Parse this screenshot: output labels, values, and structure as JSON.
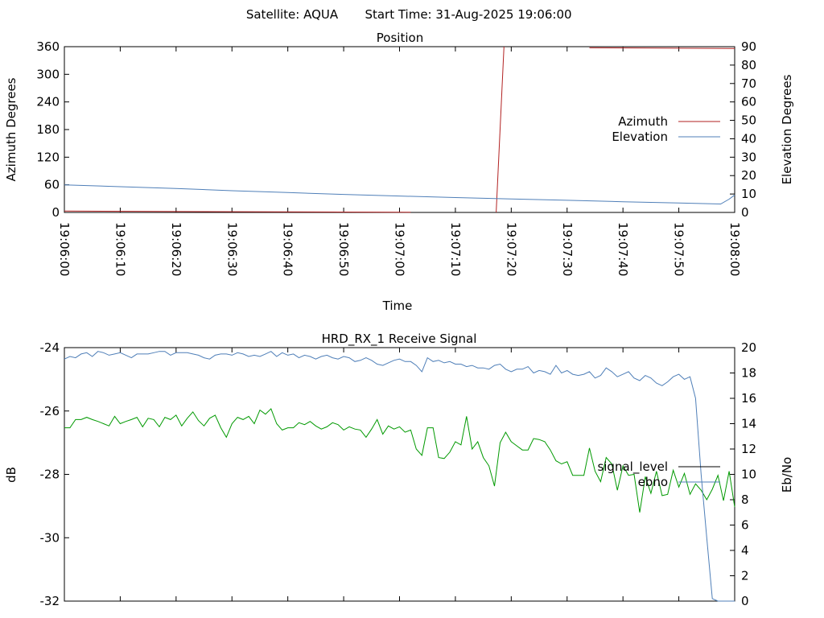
{
  "header": {
    "satellite": "Satellite: AQUA",
    "start_time": "Start Time: 31-Aug-2025 19:06:00"
  },
  "chart_data": [
    {
      "type": "line",
      "title": "Position",
      "xlabel": "Time",
      "ylabel": "Azimuth Degrees",
      "ylabel_right": "Elevation Degrees",
      "ylim": [
        0,
        360
      ],
      "ylim_right": [
        0,
        90
      ],
      "yticks": [
        "0",
        "60",
        "120",
        "180",
        "240",
        "300",
        "360"
      ],
      "yticks_right": [
        "0",
        "10",
        "20",
        "30",
        "40",
        "50",
        "60",
        "70",
        "80",
        "90"
      ],
      "xlim_seconds": [
        0,
        120
      ],
      "xticks": [
        "19:06:00",
        "19:06:10",
        "19:06:20",
        "19:06:30",
        "19:06:40",
        "19:06:50",
        "19:07:00",
        "19:07:10",
        "19:07:20",
        "19:07:30",
        "19:07:40",
        "19:07:50",
        "19:08:00"
      ],
      "legend_position": "right",
      "series": [
        {
          "name": "Azimuth",
          "axis": "left",
          "color": "#b22222",
          "segments": [
            [
              [
                0,
                3
              ],
              [
                31,
                1.5
              ],
              [
                62,
                0.3
              ]
            ],
            [
              [
                77.3,
                0
              ],
              [
                78.7,
                360
              ]
            ],
            [
              [
                94,
                357.5
              ],
              [
                120,
                356
              ]
            ]
          ]
        },
        {
          "name": "Elevation",
          "axis": "right",
          "color": "#4f7fb8",
          "points": [
            [
              0,
              15
            ],
            [
              10,
              14
            ],
            [
              20,
              13
            ],
            [
              30,
              11.8
            ],
            [
              40,
              10.8
            ],
            [
              50,
              9.8
            ],
            [
              60,
              8.9
            ],
            [
              70,
              8.1
            ],
            [
              80,
              7.3
            ],
            [
              90,
              6.6
            ],
            [
              100,
              5.8
            ],
            [
              110,
              5.1
            ],
            [
              117.5,
              4.6
            ],
            [
              119,
              7.2
            ],
            [
              120,
              9.5
            ]
          ]
        }
      ]
    },
    {
      "type": "line",
      "title": "HRD_RX_1 Receive Signal",
      "xlabel": "",
      "ylabel": "dB",
      "ylabel_right": "Eb/No",
      "ylim": [
        -32,
        -24
      ],
      "ylim_right": [
        0,
        20
      ],
      "yticks": [
        "-24",
        "-26",
        "-28",
        "-30",
        "-32"
      ],
      "yticks_right": [
        "0",
        "2",
        "4",
        "6",
        "8",
        "10",
        "12",
        "14",
        "16",
        "18",
        "20"
      ],
      "xlim_seconds": [
        0,
        120
      ],
      "legend_position": "right",
      "series": [
        {
          "name": "signal_level",
          "axis": "left",
          "color": "#009900",
          "legend_color": "#000000",
          "x": [
            0,
            1,
            2,
            3,
            4,
            5,
            6,
            7,
            8,
            9,
            10,
            11,
            12,
            13,
            14,
            15,
            16,
            17,
            18,
            19,
            20,
            21,
            22,
            23,
            24,
            25,
            26,
            27,
            28,
            29,
            30,
            31,
            32,
            33,
            34,
            35,
            36,
            37,
            38,
            39,
            40,
            41,
            42,
            43,
            44,
            45,
            46,
            47,
            48,
            49,
            50,
            51,
            52,
            53,
            54,
            55,
            56,
            57,
            58,
            59,
            60,
            61,
            62,
            63,
            64,
            65,
            66,
            67,
            68,
            69,
            70,
            71,
            72,
            73,
            74,
            75,
            76,
            77,
            78,
            79,
            80,
            81,
            82,
            83,
            84,
            85,
            86,
            87,
            88,
            89,
            90,
            91,
            92,
            93,
            94,
            95,
            96,
            97,
            98,
            99,
            100,
            101,
            102,
            103,
            104,
            105,
            106,
            107,
            108,
            109,
            110,
            111,
            112,
            113,
            114,
            115,
            116,
            117,
            118,
            119,
            120
          ],
          "values": [
            -26.53,
            -26.53,
            -26.27,
            -26.27,
            -26.2,
            -26.27,
            -26.33,
            -26.4,
            -26.47,
            -26.17,
            -26.4,
            -26.33,
            -26.27,
            -26.2,
            -26.5,
            -26.23,
            -26.27,
            -26.5,
            -26.2,
            -26.27,
            -26.13,
            -26.47,
            -26.23,
            -26.03,
            -26.3,
            -26.47,
            -26.23,
            -26.13,
            -26.53,
            -26.83,
            -26.4,
            -26.2,
            -26.27,
            -26.17,
            -26.4,
            -25.97,
            -26.1,
            -25.93,
            -26.4,
            -26.6,
            -26.53,
            -26.53,
            -26.37,
            -26.43,
            -26.33,
            -26.47,
            -26.57,
            -26.5,
            -26.37,
            -26.43,
            -26.6,
            -26.5,
            -26.57,
            -26.6,
            -26.83,
            -26.57,
            -26.27,
            -26.73,
            -26.47,
            -26.57,
            -26.5,
            -26.67,
            -26.6,
            -27.2,
            -27.4,
            -26.53,
            -26.53,
            -27.47,
            -27.5,
            -27.3,
            -26.97,
            -27.07,
            -26.17,
            -27.2,
            -26.97,
            -27.47,
            -27.73,
            -28.37,
            -27.0,
            -26.67,
            -26.97,
            -27.1,
            -27.23,
            -27.23,
            -26.87,
            -26.9,
            -26.97,
            -27.23,
            -27.57,
            -27.67,
            -27.6,
            -28.03,
            -28.03,
            -28.03,
            -27.17,
            -27.9,
            -28.23,
            -27.47,
            -27.67,
            -28.5,
            -27.73,
            -28.03,
            -28.0,
            -29.2,
            -28.07,
            -28.6,
            -27.9,
            -28.67,
            -28.63,
            -27.87,
            -28.4,
            -27.97,
            -28.63,
            -28.3,
            -28.5,
            -28.8,
            -28.47,
            -28.03,
            -28.83,
            -27.9,
            -29.03
          ]
        },
        {
          "name": "ebno",
          "axis": "right",
          "color": "#4f7fb8",
          "legend_color": "#4f7fb8",
          "x": [
            0,
            1,
            2,
            3,
            4,
            5,
            6,
            7,
            8,
            9,
            10,
            11,
            12,
            13,
            14,
            15,
            16,
            17,
            18,
            19,
            20,
            21,
            22,
            23,
            24,
            25,
            26,
            27,
            28,
            29,
            30,
            31,
            32,
            33,
            34,
            35,
            36,
            37,
            38,
            39,
            40,
            41,
            42,
            43,
            44,
            45,
            46,
            47,
            48,
            49,
            50,
            51,
            52,
            53,
            54,
            55,
            56,
            57,
            58,
            59,
            60,
            61,
            62,
            63,
            64,
            65,
            66,
            67,
            68,
            69,
            70,
            71,
            72,
            73,
            74,
            75,
            76,
            77,
            78,
            79,
            80,
            81,
            82,
            83,
            84,
            85,
            86,
            87,
            88,
            89,
            90,
            91,
            92,
            93,
            94,
            95,
            96,
            97,
            98,
            99,
            100,
            101,
            102,
            103,
            104,
            105,
            106,
            107,
            108,
            109,
            110,
            111,
            112,
            113,
            114,
            115,
            116,
            117,
            118,
            119,
            120
          ],
          "values": [
            19.1,
            19.3,
            19.2,
            19.5,
            19.6,
            19.3,
            19.7,
            19.6,
            19.4,
            19.5,
            19.6,
            19.4,
            19.2,
            19.5,
            19.5,
            19.5,
            19.6,
            19.7,
            19.7,
            19.4,
            19.6,
            19.6,
            19.6,
            19.5,
            19.4,
            19.2,
            19.1,
            19.4,
            19.5,
            19.5,
            19.4,
            19.6,
            19.5,
            19.3,
            19.4,
            19.3,
            19.5,
            19.7,
            19.3,
            19.6,
            19.4,
            19.5,
            19.2,
            19.4,
            19.3,
            19.1,
            19.3,
            19.4,
            19.2,
            19.1,
            19.3,
            19.2,
            18.9,
            19.0,
            19.2,
            19.0,
            18.7,
            18.6,
            18.8,
            19.0,
            19.1,
            18.9,
            18.9,
            18.6,
            18.1,
            19.2,
            18.9,
            19.0,
            18.8,
            18.9,
            18.7,
            18.7,
            18.5,
            18.6,
            18.4,
            18.4,
            18.3,
            18.6,
            18.7,
            18.3,
            18.1,
            18.3,
            18.3,
            18.5,
            18.0,
            18.2,
            18.1,
            17.9,
            18.6,
            18.0,
            18.2,
            17.9,
            17.8,
            17.9,
            18.1,
            17.6,
            17.8,
            18.4,
            18.1,
            17.7,
            17.9,
            18.1,
            17.6,
            17.4,
            17.8,
            17.6,
            17.2,
            17.0,
            17.3,
            17.7,
            17.9,
            17.5,
            17.7,
            16.0,
            10.0,
            5.0,
            0.2,
            0.0,
            0.0,
            0.0,
            0.0
          ]
        }
      ]
    }
  ]
}
